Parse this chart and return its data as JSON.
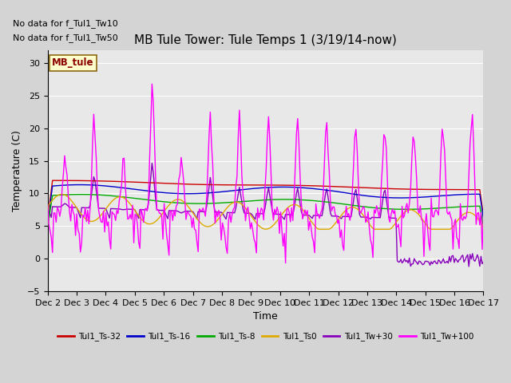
{
  "title": "MB Tule Tower: Tule Temps 1 (3/19/14-now)",
  "xlabel": "Time",
  "ylabel": "Temperature (C)",
  "no_data_text_1": "No data for f_Tul1_Tw10",
  "no_data_text_2": "No data for f_Tul1_Tw50",
  "mb_tule_label": "MB_tule",
  "ylim": [
    -5,
    32
  ],
  "yticks": [
    -5,
    0,
    5,
    10,
    15,
    20,
    25,
    30
  ],
  "x_labels": [
    "Dec 2",
    "Dec 3",
    "Dec 4",
    "Dec 5",
    "Dec 6",
    "Dec 7",
    "Dec 8",
    "Dec 9",
    "Dec 10",
    "Dec 11",
    "Dec 12",
    "Dec 13",
    "Dec 14",
    "Dec 15",
    "Dec 16",
    "Dec 17"
  ],
  "fig_bg": "#d4d4d4",
  "plot_bg": "#e8e8e8",
  "legend_entries": [
    {
      "label": "Tul1_Ts-32",
      "color": "#cc0000"
    },
    {
      "label": "Tul1_Ts-16",
      "color": "#0000cc"
    },
    {
      "label": "Tul1_Ts-8",
      "color": "#00aa00"
    },
    {
      "label": "Tul1_Ts0",
      "color": "#ddaa00"
    },
    {
      "label": "Tul1_Tw+30",
      "color": "#8800bb"
    },
    {
      "label": "Tul1_Tw+100",
      "color": "#ff00ff"
    }
  ],
  "Ts32_color": "#cc0000",
  "Ts16_color": "#0000cc",
  "Ts8_color": "#00aa00",
  "Ts0_color": "#ddaa00",
  "Tw30_color": "#8800bb",
  "Tw100_color": "#ff00ff"
}
